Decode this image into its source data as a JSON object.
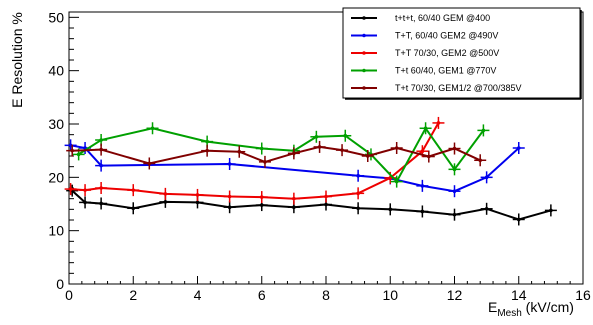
{
  "chart_data": {
    "type": "line",
    "title": "",
    "xlabel_main": "E",
    "xlabel_sub": "Mesh",
    "xlabel_unit": " (kV/cm)",
    "ylabel": "E Resolution %",
    "xlim": [
      0,
      16
    ],
    "ylim": [
      0,
      51
    ],
    "x_ticks": [
      0,
      2,
      4,
      6,
      8,
      10,
      12,
      14,
      16
    ],
    "y_ticks": [
      0,
      10,
      20,
      30,
      40,
      50
    ],
    "grid": false,
    "legend_position": "top-right",
    "series": [
      {
        "name": "t+t+t, 60/40 GEM @400",
        "color": "#000000",
        "x": [
          0.1,
          0.5,
          1.0,
          2.0,
          3.0,
          4.0,
          5.0,
          6.0,
          7.0,
          8.0,
          9.0,
          10.0,
          11.0,
          12.0,
          13.0,
          14.0,
          15.0
        ],
        "y": [
          17.5,
          15.3,
          15.1,
          14.2,
          15.4,
          15.3,
          14.4,
          14.8,
          14.4,
          14.9,
          14.2,
          14.0,
          13.6,
          13.0,
          14.1,
          12.1,
          13.8
        ]
      },
      {
        "name": "T+T, 60/40 GEM2 @490V",
        "color": "#0000ee",
        "x": [
          0.05,
          0.5,
          1.0,
          5.0,
          9.0,
          10.0,
          11.0,
          12.0,
          13.0,
          14.0
        ],
        "y": [
          26.0,
          25.5,
          22.2,
          22.5,
          20.3,
          19.8,
          18.4,
          17.4,
          20.0,
          25.5
        ]
      },
      {
        "name": "T+T 70/30, GEM2 @500V",
        "color": "#ee0000",
        "x": [
          0.05,
          0.5,
          1.0,
          2.0,
          3.0,
          4.0,
          5.0,
          6.0,
          7.0,
          8.0,
          9.0,
          10.0,
          11.0,
          11.5
        ],
        "y": [
          17.8,
          17.6,
          18.0,
          17.6,
          16.9,
          16.7,
          16.4,
          16.3,
          16.0,
          16.4,
          17.0,
          19.9,
          24.9,
          30.2
        ]
      },
      {
        "name": "T+t 60/40, GEM1 @770V",
        "color": "#00a000",
        "x": [
          0.3,
          1.0,
          2.6,
          4.3,
          6.0,
          7.0,
          7.7,
          8.6,
          9.4,
          10.2,
          11.1,
          12.0,
          12.9
        ],
        "y": [
          24.3,
          27.0,
          29.2,
          26.7,
          25.4,
          25.0,
          27.6,
          27.8,
          24.3,
          19.2,
          29.2,
          21.5,
          28.8
        ]
      },
      {
        "name": "T+t 70/30, GEM1/2 @700/385V",
        "color": "#800000",
        "x": [
          0.1,
          1.0,
          2.5,
          4.3,
          5.3,
          6.1,
          7.0,
          7.8,
          8.5,
          9.3,
          10.2,
          11.2,
          12.0,
          12.8
        ],
        "y": [
          25.0,
          25.2,
          22.6,
          25.0,
          24.8,
          22.9,
          24.5,
          25.7,
          25.1,
          24.0,
          25.5,
          23.9,
          25.4,
          23.2
        ]
      }
    ]
  }
}
